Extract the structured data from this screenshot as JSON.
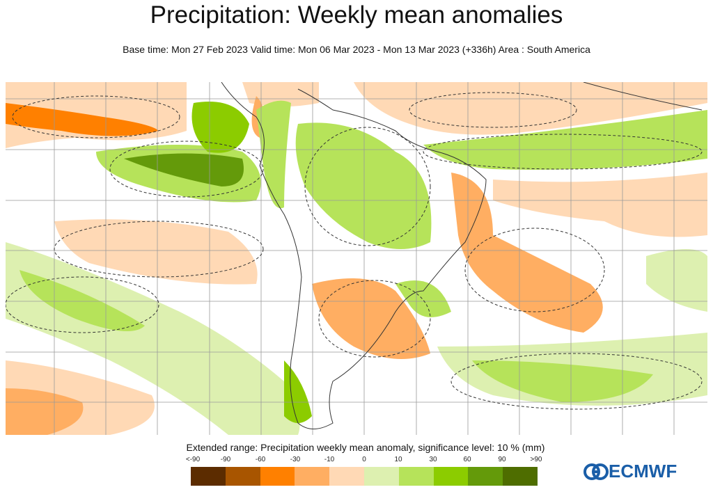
{
  "title": "Precipitation: Weekly mean anomalies",
  "subtitle": "Base time: Mon 27 Feb 2023 Valid time: Mon 06 Mar 2023 - Mon 13 Mar 2023 (+336h) Area : South America",
  "legend": {
    "title": "Extended range: Precipitation weekly mean anomaly, significance level: 10 % (mm)",
    "ticks": [
      "<-90",
      "-90",
      "-60",
      "-30",
      "-10",
      "0",
      "10",
      "30",
      "60",
      "90",
      ">90"
    ],
    "colors": [
      "#5c2c00",
      "#a85500",
      "#ff8000",
      "#ffae62",
      "#ffd9b5",
      "#ddf0b0",
      "#b6e35a",
      "#8ccc00",
      "#649a0a",
      "#4e6d00"
    ]
  },
  "logo": "ECMWF"
}
